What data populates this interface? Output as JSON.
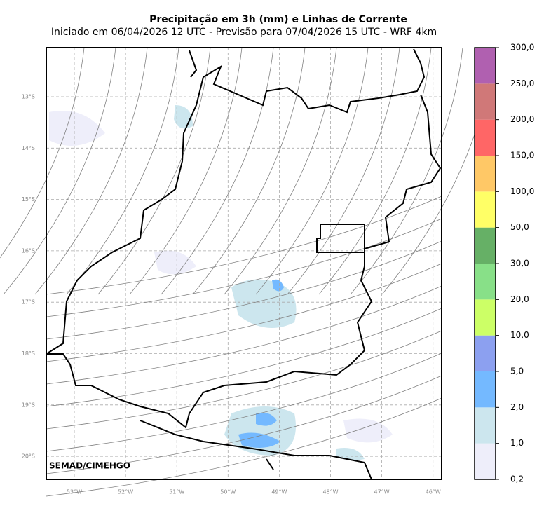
{
  "header": {
    "title": "Precipitação em 3h (mm) e Linhas de Corrente",
    "subtitle": "Iniciado em 06/04/2026 12 UTC - Previsão para 07/04/2026 15 UTC - WRF 4km"
  },
  "map": {
    "lat_labels": [
      "13°S",
      "14°S",
      "15°S",
      "16°S",
      "17°S",
      "18°S",
      "19°S",
      "20°S"
    ],
    "lon_labels": [
      "53°W",
      "52°W",
      "51°W",
      "50°W",
      "49°W",
      "48°W",
      "47°W",
      "46°W"
    ],
    "watermark": "SEMAD/CIMEHGO"
  },
  "colorbar": {
    "labels": [
      "0,2",
      "1,0",
      "2,0",
      "5,0",
      "10,0",
      "20,0",
      "30,0",
      "50,0",
      "100,0",
      "150,0",
      "200,0",
      "250,0",
      "300,0"
    ],
    "colors": [
      "#eeeefa",
      "#cce6ee",
      "#74b9ff",
      "#8ca0f0",
      "#ccff66",
      "#88e088",
      "#66b066",
      "#ffff66",
      "#ffc866",
      "#ff6666",
      "#d07878",
      "#b060b0"
    ]
  }
}
